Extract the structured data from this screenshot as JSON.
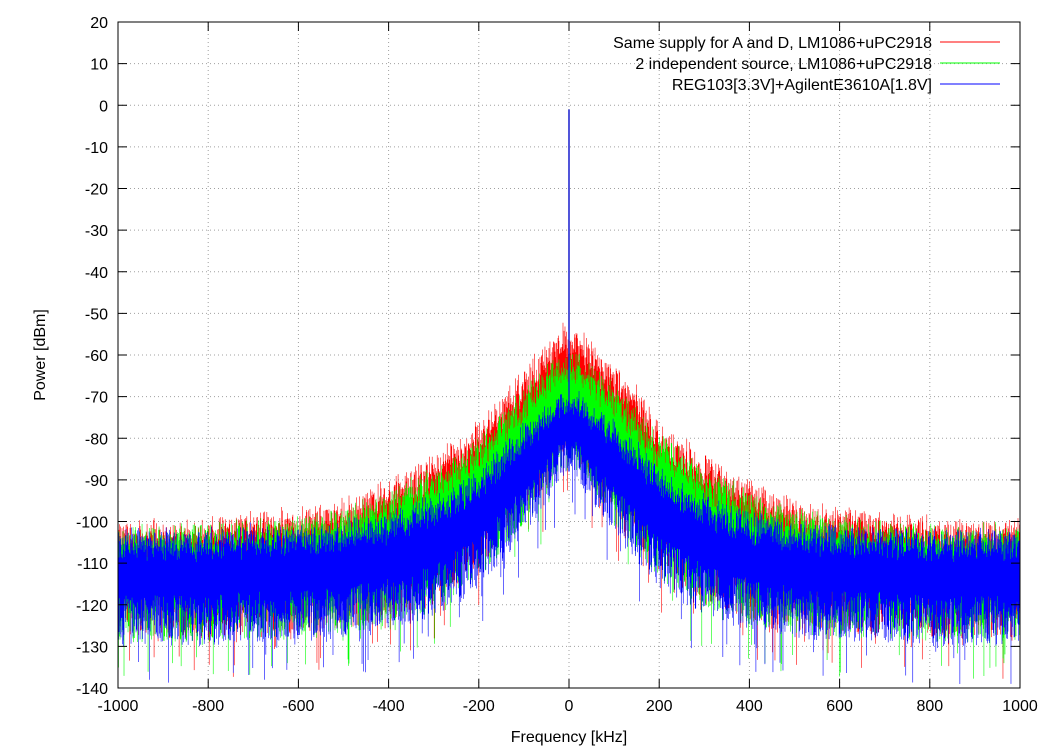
{
  "chart_data": {
    "type": "line",
    "title": "",
    "xlabel": "Frequency [kHz]",
    "ylabel": "Power [dBm]",
    "xlim": [
      -1000,
      1000
    ],
    "ylim": [
      -140,
      20
    ],
    "xticks": [
      "-1000",
      "-800",
      "-600",
      "-400",
      "-200",
      "0",
      "200",
      "400",
      "600",
      "800",
      "1000"
    ],
    "yticks": [
      "20",
      "10",
      "0",
      "-10",
      "-20",
      "-30",
      "-40",
      "-50",
      "-60",
      "-70",
      "-80",
      "-90",
      "-100",
      "-110",
      "-120",
      "-130",
      "-140"
    ],
    "grid": true,
    "legend_position": "top-right",
    "series": [
      {
        "name": "Same supply for A and D, LM1086+uPC2918",
        "color": "#ff0000",
        "x": [
          -1000,
          -900,
          -800,
          -700,
          -600,
          -500,
          -400,
          -300,
          -200,
          -150,
          -100,
          -50,
          -20,
          0,
          20,
          50,
          100,
          150,
          200,
          300,
          400,
          500,
          600,
          700,
          800,
          900,
          1000
        ],
        "y_upper": [
          -99,
          -99,
          -98,
          -97,
          -96,
          -94,
          -89,
          -83,
          -75,
          -68,
          -62,
          -56,
          -52,
          -1,
          -52,
          -56,
          -61,
          -67,
          -75,
          -83,
          -89,
          -94,
          -96,
          -97,
          -98,
          -99,
          -99
        ],
        "y_lower": [
          -128,
          -128,
          -128,
          -127,
          -127,
          -126,
          -124,
          -120,
          -112,
          -106,
          -99,
          -92,
          -86,
          -1,
          -86,
          -92,
          -99,
          -106,
          -112,
          -120,
          -124,
          -126,
          -127,
          -127,
          -128,
          -128,
          -128
        ]
      },
      {
        "name": "2 independent source, LM1086+uPC2918",
        "color": "#00ff00",
        "x": [
          -1000,
          -900,
          -800,
          -700,
          -600,
          -500,
          -400,
          -300,
          -200,
          -150,
          -100,
          -50,
          -20,
          0,
          20,
          50,
          100,
          150,
          200,
          300,
          400,
          500,
          600,
          700,
          800,
          900,
          1000
        ],
        "y_upper": [
          -100,
          -100,
          -100,
          -99,
          -98,
          -96,
          -92,
          -86,
          -79,
          -73,
          -67,
          -62,
          -59,
          -1,
          -59,
          -62,
          -66,
          -72,
          -78,
          -86,
          -92,
          -96,
          -98,
          -99,
          -100,
          -100,
          -100
        ],
        "y_lower": [
          -129,
          -129,
          -129,
          -128,
          -128,
          -127,
          -125,
          -121,
          -114,
          -108,
          -101,
          -94,
          -88,
          -1,
          -88,
          -94,
          -101,
          -108,
          -114,
          -121,
          -125,
          -127,
          -128,
          -128,
          -129,
          -129,
          -129
        ]
      },
      {
        "name": "REG103[3.3V]+AgilentE3610A[1.8V]",
        "color": "#0000ff",
        "x": [
          -1000,
          -900,
          -800,
          -700,
          -600,
          -500,
          -400,
          -300,
          -200,
          -150,
          -100,
          -50,
          -20,
          0,
          20,
          50,
          100,
          150,
          200,
          300,
          400,
          500,
          600,
          700,
          800,
          900,
          1000
        ],
        "y_upper": [
          -101,
          -101,
          -101,
          -100,
          -100,
          -99,
          -97,
          -93,
          -87,
          -81,
          -76,
          -71,
          -68,
          -1,
          -68,
          -71,
          -75,
          -80,
          -86,
          -93,
          -97,
          -99,
          -100,
          -100,
          -101,
          -101,
          -101
        ],
        "y_lower": [
          -130,
          -130,
          -130,
          -129,
          -129,
          -128,
          -126,
          -123,
          -116,
          -110,
          -103,
          -96,
          -90,
          -1,
          -90,
          -96,
          -103,
          -110,
          -116,
          -123,
          -126,
          -128,
          -129,
          -129,
          -130,
          -130,
          -130
        ]
      }
    ]
  }
}
